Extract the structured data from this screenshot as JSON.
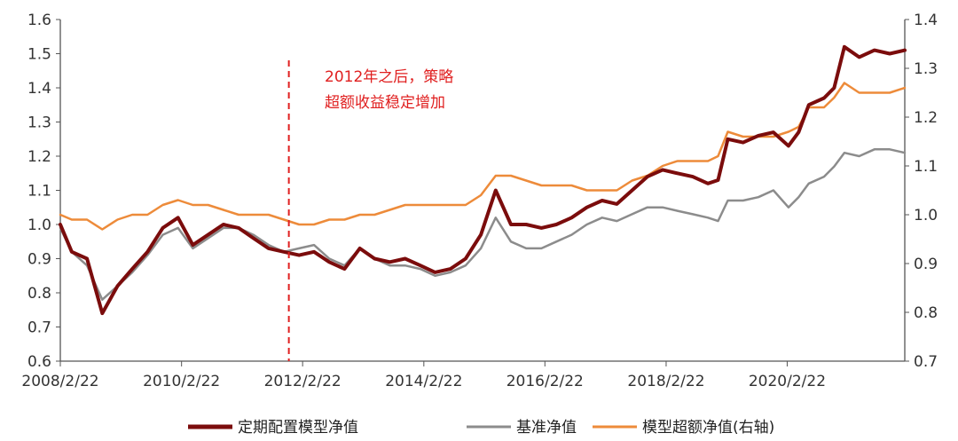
{
  "chart_data": {
    "type": "line",
    "x_ticks": [
      "2008/2/22",
      "2010/2/22",
      "2012/2/22",
      "2014/2/22",
      "2016/2/22",
      "2018/2/22",
      "2020/2/22"
    ],
    "y_left_ticks": [
      "0.6",
      "0.7",
      "0.8",
      "0.9",
      "1.0",
      "1.1",
      "1.2",
      "1.3",
      "1.4",
      "1.5",
      "1.6"
    ],
    "y_right_ticks": [
      "0.7",
      "0.8",
      "0.9",
      "1.0",
      "1.1",
      "1.2",
      "1.3",
      "1.4"
    ],
    "ylim_left": [
      0.6,
      1.6
    ],
    "ylim_right": [
      0.7,
      1.4
    ],
    "xlim": [
      "2008/2/22",
      "2022/1/31"
    ],
    "grid": false,
    "legend_position": "bottom",
    "annotation": {
      "x": "2011/12/1",
      "lines": [
        "2012年之后，策略",
        "超额收益稳定增加"
      ],
      "color": "#e02020",
      "style": "dashed"
    },
    "series": [
      {
        "name": "定期配置模型净值",
        "axis": "left",
        "color": "#7b0c0c",
        "points": [
          [
            "2008/2/22",
            1.0
          ],
          [
            "2008/5/1",
            0.92
          ],
          [
            "2008/8/1",
            0.9
          ],
          [
            "2008/11/1",
            0.74
          ],
          [
            "2009/2/1",
            0.82
          ],
          [
            "2009/5/1",
            0.87
          ],
          [
            "2009/8/1",
            0.92
          ],
          [
            "2009/11/1",
            0.99
          ],
          [
            "2010/2/1",
            1.02
          ],
          [
            "2010/5/1",
            0.94
          ],
          [
            "2010/8/1",
            0.97
          ],
          [
            "2010/11/1",
            1.0
          ],
          [
            "2011/2/1",
            0.99
          ],
          [
            "2011/5/1",
            0.96
          ],
          [
            "2011/8/1",
            0.93
          ],
          [
            "2011/11/1",
            0.92
          ],
          [
            "2012/2/1",
            0.91
          ],
          [
            "2012/5/1",
            0.92
          ],
          [
            "2012/8/1",
            0.89
          ],
          [
            "2012/11/1",
            0.87
          ],
          [
            "2013/2/1",
            0.93
          ],
          [
            "2013/5/1",
            0.9
          ],
          [
            "2013/8/1",
            0.89
          ],
          [
            "2013/11/1",
            0.9
          ],
          [
            "2014/2/1",
            0.88
          ],
          [
            "2014/5/1",
            0.86
          ],
          [
            "2014/8/1",
            0.87
          ],
          [
            "2014/11/1",
            0.9
          ],
          [
            "2015/2/1",
            0.97
          ],
          [
            "2015/5/1",
            1.1
          ],
          [
            "2015/8/1",
            1.0
          ],
          [
            "2015/11/1",
            1.0
          ],
          [
            "2016/2/1",
            0.99
          ],
          [
            "2016/5/1",
            1.0
          ],
          [
            "2016/8/1",
            1.02
          ],
          [
            "2016/11/1",
            1.05
          ],
          [
            "2017/2/1",
            1.07
          ],
          [
            "2017/5/1",
            1.06
          ],
          [
            "2017/8/1",
            1.1
          ],
          [
            "2017/11/1",
            1.14
          ],
          [
            "2018/2/1",
            1.16
          ],
          [
            "2018/5/1",
            1.15
          ],
          [
            "2018/8/1",
            1.14
          ],
          [
            "2018/11/1",
            1.12
          ],
          [
            "2019/1/1",
            1.13
          ],
          [
            "2019/3/1",
            1.25
          ],
          [
            "2019/6/1",
            1.24
          ],
          [
            "2019/9/1",
            1.26
          ],
          [
            "2019/12/1",
            1.27
          ],
          [
            "2020/3/1",
            1.23
          ],
          [
            "2020/5/1",
            1.27
          ],
          [
            "2020/7/1",
            1.35
          ],
          [
            "2020/10/1",
            1.37
          ],
          [
            "2020/12/1",
            1.4
          ],
          [
            "2021/2/1",
            1.52
          ],
          [
            "2021/5/1",
            1.49
          ],
          [
            "2021/8/1",
            1.51
          ],
          [
            "2021/11/1",
            1.5
          ],
          [
            "2022/1/31",
            1.51
          ]
        ]
      },
      {
        "name": "基准净值",
        "axis": "left",
        "color": "#8c8c8c",
        "points": [
          [
            "2008/2/22",
            0.99
          ],
          [
            "2008/5/1",
            0.92
          ],
          [
            "2008/8/1",
            0.88
          ],
          [
            "2008/11/1",
            0.78
          ],
          [
            "2009/2/1",
            0.82
          ],
          [
            "2009/5/1",
            0.86
          ],
          [
            "2009/8/1",
            0.91
          ],
          [
            "2009/11/1",
            0.97
          ],
          [
            "2010/2/1",
            0.99
          ],
          [
            "2010/5/1",
            0.93
          ],
          [
            "2010/8/1",
            0.96
          ],
          [
            "2010/11/1",
            0.99
          ],
          [
            "2011/2/1",
            0.99
          ],
          [
            "2011/5/1",
            0.97
          ],
          [
            "2011/8/1",
            0.94
          ],
          [
            "2011/11/1",
            0.92
          ],
          [
            "2012/2/1",
            0.93
          ],
          [
            "2012/5/1",
            0.94
          ],
          [
            "2012/8/1",
            0.9
          ],
          [
            "2012/11/1",
            0.88
          ],
          [
            "2013/2/1",
            0.93
          ],
          [
            "2013/5/1",
            0.9
          ],
          [
            "2013/8/1",
            0.88
          ],
          [
            "2013/11/1",
            0.88
          ],
          [
            "2014/2/1",
            0.87
          ],
          [
            "2014/5/1",
            0.85
          ],
          [
            "2014/8/1",
            0.86
          ],
          [
            "2014/11/1",
            0.88
          ],
          [
            "2015/2/1",
            0.93
          ],
          [
            "2015/5/1",
            1.02
          ],
          [
            "2015/8/1",
            0.95
          ],
          [
            "2015/11/1",
            0.93
          ],
          [
            "2016/2/1",
            0.93
          ],
          [
            "2016/5/1",
            0.95
          ],
          [
            "2016/8/1",
            0.97
          ],
          [
            "2016/11/1",
            1.0
          ],
          [
            "2017/2/1",
            1.02
          ],
          [
            "2017/5/1",
            1.01
          ],
          [
            "2017/8/1",
            1.03
          ],
          [
            "2017/11/1",
            1.05
          ],
          [
            "2018/2/1",
            1.05
          ],
          [
            "2018/5/1",
            1.04
          ],
          [
            "2018/8/1",
            1.03
          ],
          [
            "2018/11/1",
            1.02
          ],
          [
            "2019/1/1",
            1.01
          ],
          [
            "2019/3/1",
            1.07
          ],
          [
            "2019/6/1",
            1.07
          ],
          [
            "2019/9/1",
            1.08
          ],
          [
            "2019/12/1",
            1.1
          ],
          [
            "2020/3/1",
            1.05
          ],
          [
            "2020/5/1",
            1.08
          ],
          [
            "2020/7/1",
            1.12
          ],
          [
            "2020/10/1",
            1.14
          ],
          [
            "2020/12/1",
            1.17
          ],
          [
            "2021/2/1",
            1.21
          ],
          [
            "2021/5/1",
            1.2
          ],
          [
            "2021/8/1",
            1.22
          ],
          [
            "2021/11/1",
            1.22
          ],
          [
            "2022/1/31",
            1.21
          ]
        ]
      },
      {
        "name": "模型超额净值(右轴)",
        "axis": "right",
        "color": "#ed8b3a",
        "points": [
          [
            "2008/2/22",
            1.0
          ],
          [
            "2008/5/1",
            0.99
          ],
          [
            "2008/8/1",
            0.99
          ],
          [
            "2008/11/1",
            0.97
          ],
          [
            "2009/2/1",
            0.99
          ],
          [
            "2009/5/1",
            1.0
          ],
          [
            "2009/8/1",
            1.0
          ],
          [
            "2009/11/1",
            1.02
          ],
          [
            "2010/2/1",
            1.03
          ],
          [
            "2010/5/1",
            1.02
          ],
          [
            "2010/8/1",
            1.02
          ],
          [
            "2010/11/1",
            1.01
          ],
          [
            "2011/2/1",
            1.0
          ],
          [
            "2011/5/1",
            1.0
          ],
          [
            "2011/8/1",
            1.0
          ],
          [
            "2011/11/1",
            0.99
          ],
          [
            "2012/2/1",
            0.98
          ],
          [
            "2012/5/1",
            0.98
          ],
          [
            "2012/8/1",
            0.99
          ],
          [
            "2012/11/1",
            0.99
          ],
          [
            "2013/2/1",
            1.0
          ],
          [
            "2013/5/1",
            1.0
          ],
          [
            "2013/8/1",
            1.01
          ],
          [
            "2013/11/1",
            1.02
          ],
          [
            "2014/2/1",
            1.02
          ],
          [
            "2014/5/1",
            1.02
          ],
          [
            "2014/8/1",
            1.02
          ],
          [
            "2014/11/1",
            1.02
          ],
          [
            "2015/2/1",
            1.04
          ],
          [
            "2015/5/1",
            1.08
          ],
          [
            "2015/8/1",
            1.08
          ],
          [
            "2015/11/1",
            1.07
          ],
          [
            "2016/2/1",
            1.06
          ],
          [
            "2016/5/1",
            1.06
          ],
          [
            "2016/8/1",
            1.06
          ],
          [
            "2016/11/1",
            1.05
          ],
          [
            "2017/2/1",
            1.05
          ],
          [
            "2017/5/1",
            1.05
          ],
          [
            "2017/8/1",
            1.07
          ],
          [
            "2017/11/1",
            1.08
          ],
          [
            "2018/2/1",
            1.1
          ],
          [
            "2018/5/1",
            1.11
          ],
          [
            "2018/8/1",
            1.11
          ],
          [
            "2018/11/1",
            1.11
          ],
          [
            "2019/1/1",
            1.12
          ],
          [
            "2019/3/1",
            1.17
          ],
          [
            "2019/6/1",
            1.16
          ],
          [
            "2019/9/1",
            1.16
          ],
          [
            "2019/12/1",
            1.16
          ],
          [
            "2020/3/1",
            1.17
          ],
          [
            "2020/5/1",
            1.18
          ],
          [
            "2020/7/1",
            1.22
          ],
          [
            "2020/10/1",
            1.22
          ],
          [
            "2020/12/1",
            1.24
          ],
          [
            "2021/2/1",
            1.27
          ],
          [
            "2021/5/1",
            1.25
          ],
          [
            "2021/8/1",
            1.25
          ],
          [
            "2021/11/1",
            1.25
          ],
          [
            "2022/1/31",
            1.26
          ]
        ]
      }
    ]
  }
}
